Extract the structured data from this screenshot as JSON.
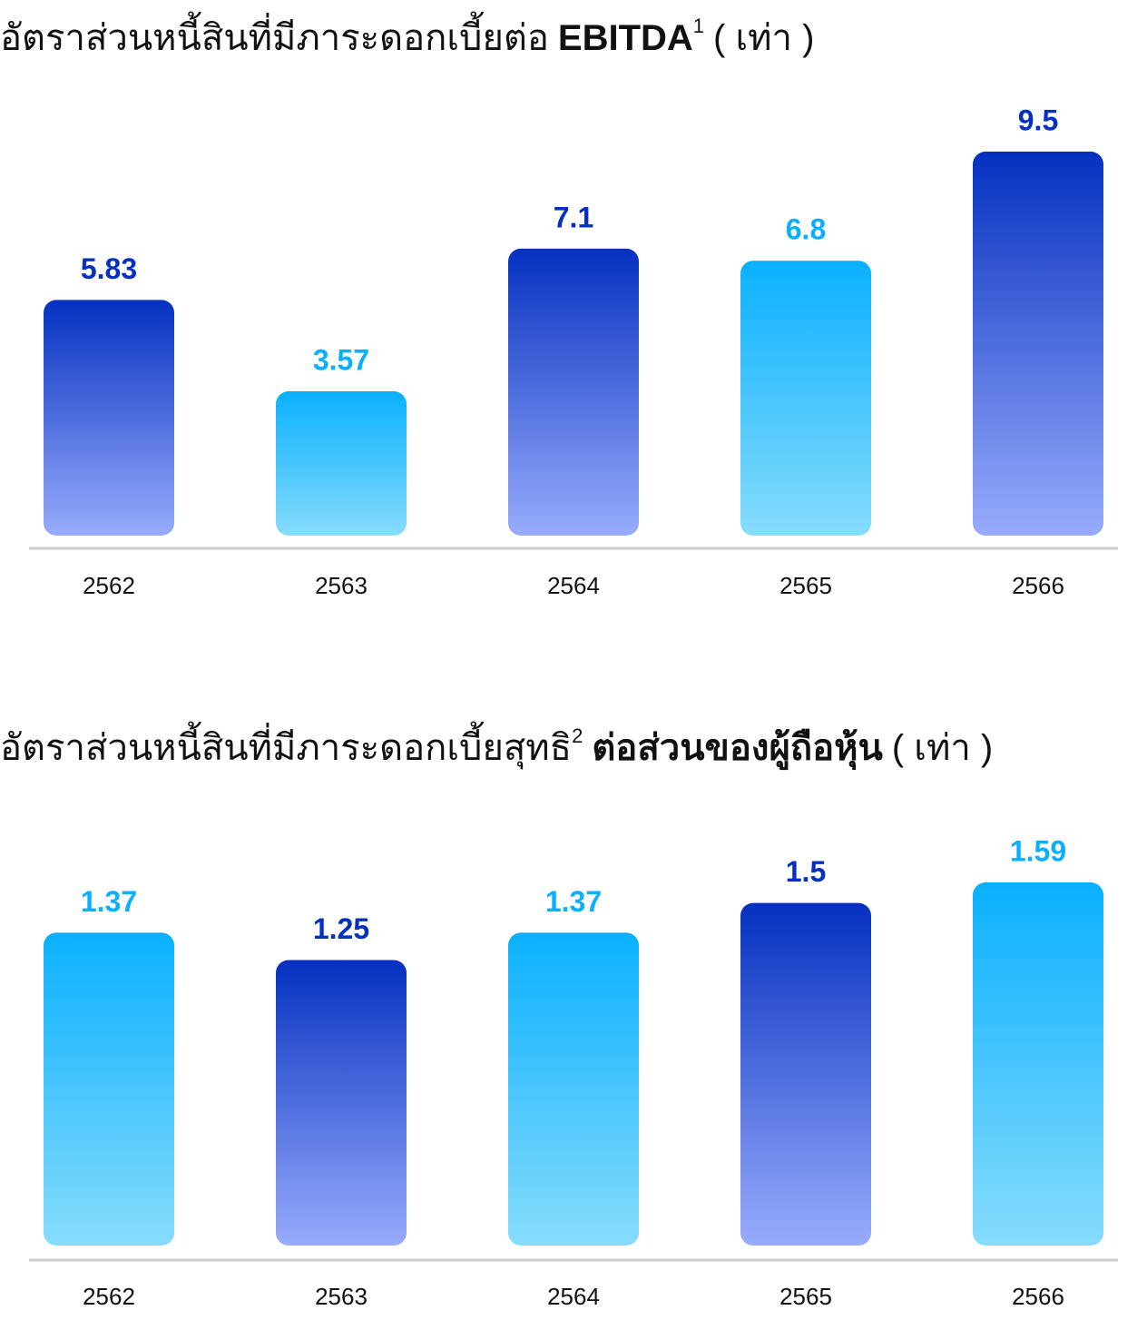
{
  "chart_data": [
    {
      "type": "bar",
      "title_parts": [
        {
          "text": "อัตราส่วนหนี้สินที่มีภาระดอกเบี้ยต่อ",
          "style": "normal"
        },
        {
          "text": "EBITDA",
          "style": "bold"
        },
        {
          "text": "1",
          "style": "sup"
        },
        {
          "text": "( เท่า )",
          "style": "normal"
        }
      ],
      "categories": [
        "2562",
        "2563",
        "2564",
        "2565",
        "2566"
      ],
      "values": [
        5.83,
        3.57,
        7.1,
        6.8,
        9.5
      ],
      "colors": [
        "#0530c0",
        "#0ab0fe",
        "#0530c0",
        "#0ab0fe",
        "#0530c0"
      ],
      "fade_colors": [
        "#98acfc",
        "#86dcfc",
        "#98acfc",
        "#86dcfc",
        "#98acfc"
      ],
      "ylim": [
        0,
        9.5
      ]
    },
    {
      "type": "bar",
      "title_parts": [
        {
          "text": "อัตราส่วนหนี้สินที่มีภาระดอกเบี้ยสุทธิ",
          "style": "normal"
        },
        {
          "text": "2",
          "style": "sup"
        },
        {
          "text": "ต่อส่วนของผู้ถือหุ้น",
          "style": "bold"
        },
        {
          "text": "( เท่า )",
          "style": "normal"
        }
      ],
      "categories": [
        "2562",
        "2563",
        "2564",
        "2565",
        "2566"
      ],
      "values": [
        1.37,
        1.25,
        1.37,
        1.5,
        1.59
      ],
      "colors": [
        "#0ab0fe",
        "#0530c0",
        "#0ab0fe",
        "#0530c0",
        "#0ab0fe"
      ],
      "fade_colors": [
        "#86dcfc",
        "#98acfc",
        "#86dcfc",
        "#98acfc",
        "#86dcfc"
      ],
      "ylim": [
        0,
        1.59
      ]
    }
  ]
}
